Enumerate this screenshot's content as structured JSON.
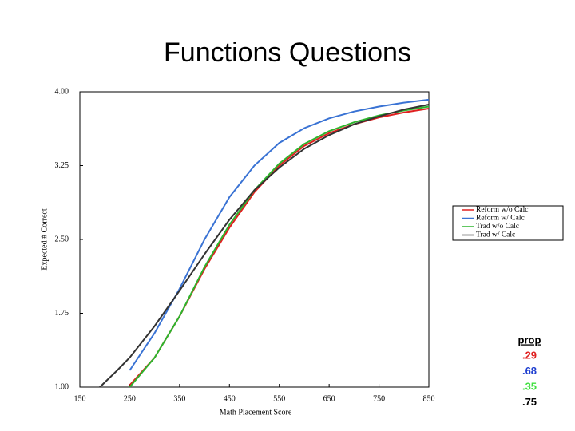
{
  "chart_data": {
    "type": "line",
    "title": "Functions Questions",
    "xlabel": "Math Placement Score",
    "ylabel": "Expected # Correct",
    "x": [
      190,
      225,
      250,
      300,
      350,
      400,
      450,
      500,
      550,
      600,
      650,
      700,
      750,
      800,
      850
    ],
    "series": [
      {
        "name": "Reform w/o Calc",
        "color": "#e02020",
        "values": [
          null,
          null,
          1.02,
          1.3,
          1.72,
          2.2,
          2.62,
          2.98,
          3.25,
          3.45,
          3.58,
          3.67,
          3.74,
          3.79,
          3.83
        ]
      },
      {
        "name": "Reform w/ Calc",
        "color": "#3a73d4",
        "values": [
          null,
          null,
          1.17,
          1.55,
          2.0,
          2.5,
          2.93,
          3.25,
          3.48,
          3.63,
          3.73,
          3.8,
          3.85,
          3.89,
          3.92
        ]
      },
      {
        "name": "Trad w/o Calc",
        "color": "#2db52d",
        "values": [
          null,
          null,
          1.0,
          1.3,
          1.72,
          2.22,
          2.65,
          3.0,
          3.27,
          3.47,
          3.6,
          3.69,
          3.76,
          3.81,
          3.85
        ]
      },
      {
        "name": "Trad w/ Calc",
        "color": "#333333",
        "values": [
          1.0,
          1.17,
          1.3,
          1.62,
          1.98,
          2.35,
          2.7,
          3.0,
          3.23,
          3.42,
          3.56,
          3.67,
          3.75,
          3.82,
          3.87
        ]
      }
    ],
    "xlim": [
      150,
      850
    ],
    "xticks": [
      150,
      250,
      350,
      450,
      550,
      650,
      750,
      850
    ],
    "ylim": [
      1,
      4
    ],
    "yticks": [
      {
        "value": 1,
        "label": "1.00"
      },
      {
        "value": 1.75,
        "label": "1.75"
      },
      {
        "value": 2.5,
        "label": "2.50"
      },
      {
        "value": 3.25,
        "label": "3.25"
      },
      {
        "value": 4,
        "label": "4.00"
      }
    ],
    "legend": "right"
  },
  "prop_table": {
    "header": "prop",
    "values": [
      ".29",
      ".68",
      ".35",
      ".75"
    ],
    "colors": [
      "#e02020",
      "#2040d0",
      "#40e040",
      "#000000"
    ]
  }
}
